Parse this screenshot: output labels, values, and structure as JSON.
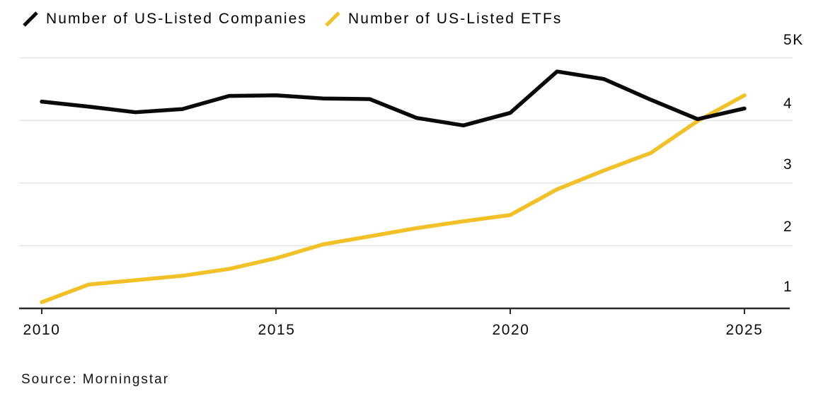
{
  "legend": {
    "items": [
      {
        "label": "Number of US-Listed Companies",
        "color": "#0a0a0a"
      },
      {
        "label": "Number of US-Listed ETFs",
        "color": "#F2C027"
      }
    ]
  },
  "source_note": "Source: Morningstar",
  "chart_data": {
    "type": "line",
    "x": [
      2010,
      2011,
      2012,
      2013,
      2014,
      2015,
      2016,
      2017,
      2018,
      2019,
      2020,
      2021,
      2022,
      2023,
      2024,
      2025
    ],
    "series": [
      {
        "name": "Number of US-Listed Companies",
        "color": "#0a0a0a",
        "values": [
          4300,
          4220,
          4130,
          4180,
          4390,
          4400,
          4350,
          4340,
          4040,
          3920,
          4120,
          4780,
          4660,
          4330,
          4020,
          4190
        ]
      },
      {
        "name": "Number of US-Listed ETFs",
        "color": "#F2C027",
        "values": [
          1100,
          1380,
          1450,
          1520,
          1630,
          1800,
          2020,
          2150,
          2280,
          2390,
          2490,
          2900,
          3200,
          3480,
          3990,
          4400
        ]
      }
    ],
    "x_ticks": [
      2010,
      2015,
      2020,
      2025
    ],
    "x_tick_labels": [
      "2010",
      "2015",
      "2020",
      "2025"
    ],
    "y_ticks": [
      5000,
      4000,
      3000,
      2000,
      1000
    ],
    "y_tick_labels": [
      "5K",
      "4",
      "3",
      "2",
      "1"
    ],
    "xlim": [
      2010,
      2025
    ],
    "ylim": [
      1000,
      5000
    ],
    "grid": "horizontal",
    "legend_position": "top-left",
    "colors": {
      "background": "#ffffff",
      "grid": "#e4e4e4",
      "axis": "#2b2b2b",
      "text": "#0a0a0a"
    }
  }
}
